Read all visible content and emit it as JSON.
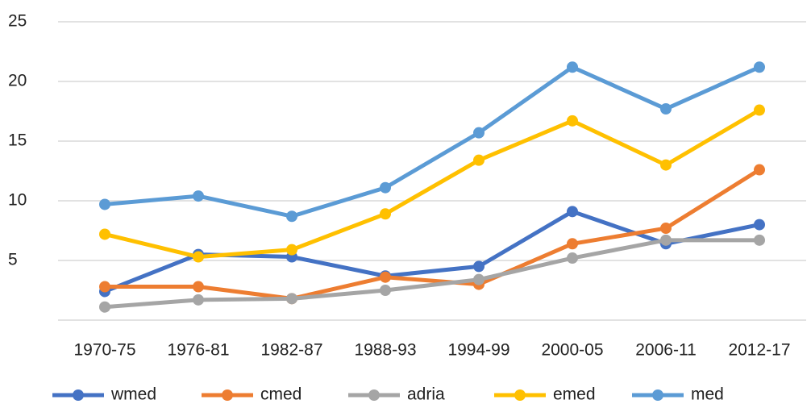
{
  "chart_data": {
    "type": "line",
    "categories": [
      "1970-75",
      "1976-81",
      "1982-87",
      "1988-93",
      "1994-99",
      "2000-05",
      "2006-11",
      "2012-17"
    ],
    "series": [
      {
        "name": "wmed",
        "color": "#4472c4",
        "values": [
          2.4,
          5.5,
          5.3,
          3.7,
          4.5,
          9.1,
          6.4,
          8.0
        ]
      },
      {
        "name": "cmed",
        "color": "#ed7d31",
        "values": [
          2.8,
          2.8,
          1.8,
          3.6,
          3.0,
          6.4,
          7.7,
          12.6
        ]
      },
      {
        "name": "adria",
        "color": "#a5a5a5",
        "values": [
          1.1,
          1.7,
          1.8,
          2.5,
          3.4,
          5.2,
          6.7,
          6.7
        ]
      },
      {
        "name": "emed",
        "color": "#ffc000",
        "values": [
          7.2,
          5.3,
          5.9,
          8.9,
          13.4,
          16.7,
          13.0,
          17.6
        ]
      },
      {
        "name": "med",
        "color": "#5b9bd5",
        "values": [
          9.7,
          10.4,
          8.7,
          11.1,
          15.7,
          21.2,
          17.7,
          21.2
        ]
      }
    ],
    "ylim": [
      0,
      25
    ],
    "yticks": [
      5,
      10,
      15,
      20,
      25
    ],
    "grid": true,
    "legend": "bottom"
  }
}
